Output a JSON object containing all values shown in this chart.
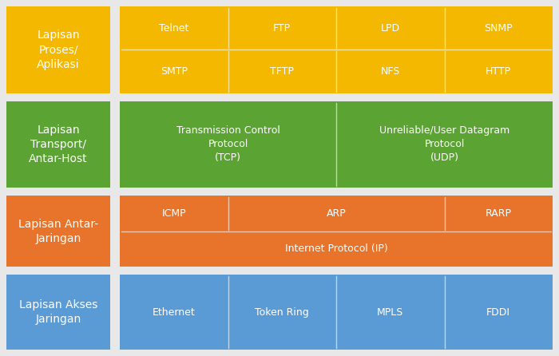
{
  "background_color": "#e8e8e8",
  "colors": {
    "yellow": "#F5B800",
    "green": "#5BA332",
    "orange": "#E8732A",
    "blue": "#5B9BD5"
  },
  "layers": [
    {
      "label": "Lapisan\nProses/\nAplikasi",
      "color": "#F5B800",
      "layer_idx": 0,
      "cells": [
        [
          {
            "text": "Telnet",
            "col": 0,
            "colspan": 1
          },
          {
            "text": "FTP",
            "col": 1,
            "colspan": 1
          },
          {
            "text": "LPD",
            "col": 2,
            "colspan": 1
          },
          {
            "text": "SNMP",
            "col": 3,
            "colspan": 1
          }
        ],
        [
          {
            "text": "SMTP",
            "col": 0,
            "colspan": 1
          },
          {
            "text": "TFTP",
            "col": 1,
            "colspan": 1
          },
          {
            "text": "NFS",
            "col": 2,
            "colspan": 1
          },
          {
            "text": "HTTP",
            "col": 3,
            "colspan": 1
          }
        ]
      ]
    },
    {
      "label": "Lapisan\nTransport/\nAntar-Host",
      "color": "#5BA332",
      "layer_idx": 1,
      "cells": [
        [
          {
            "text": "Transmission Control\nProtocol\n(TCP)",
            "col": 0,
            "colspan": 2
          },
          {
            "text": "Unreliable/User Datagram\nProtocol\n(UDP)",
            "col": 2,
            "colspan": 2
          }
        ]
      ]
    },
    {
      "label": "Lapisan Antar-\nJaringan",
      "color": "#E8732A",
      "layer_idx": 2,
      "cells": [
        [
          {
            "text": "ICMP",
            "col": 0,
            "colspan": 1
          },
          {
            "text": "ARP",
            "col": 1,
            "colspan": 2
          },
          {
            "text": "RARP",
            "col": 3,
            "colspan": 1
          }
        ],
        [
          {
            "text": "Internet Protocol (IP)",
            "col": 0,
            "colspan": 4
          }
        ]
      ]
    },
    {
      "label": "Lapisan Akses\nJaringan",
      "color": "#5B9BD5",
      "layer_idx": 3,
      "cells": [
        [
          {
            "text": "Ethernet",
            "col": 0,
            "colspan": 1
          },
          {
            "text": "Token Ring",
            "col": 1,
            "colspan": 1
          },
          {
            "text": "MPLS",
            "col": 2,
            "colspan": 1
          },
          {
            "text": "FDDI",
            "col": 3,
            "colspan": 1
          }
        ]
      ]
    }
  ],
  "label_fontsize": 10,
  "cell_fontsize": 9,
  "fig_width": 7.0,
  "fig_height": 4.46,
  "dpi": 100
}
